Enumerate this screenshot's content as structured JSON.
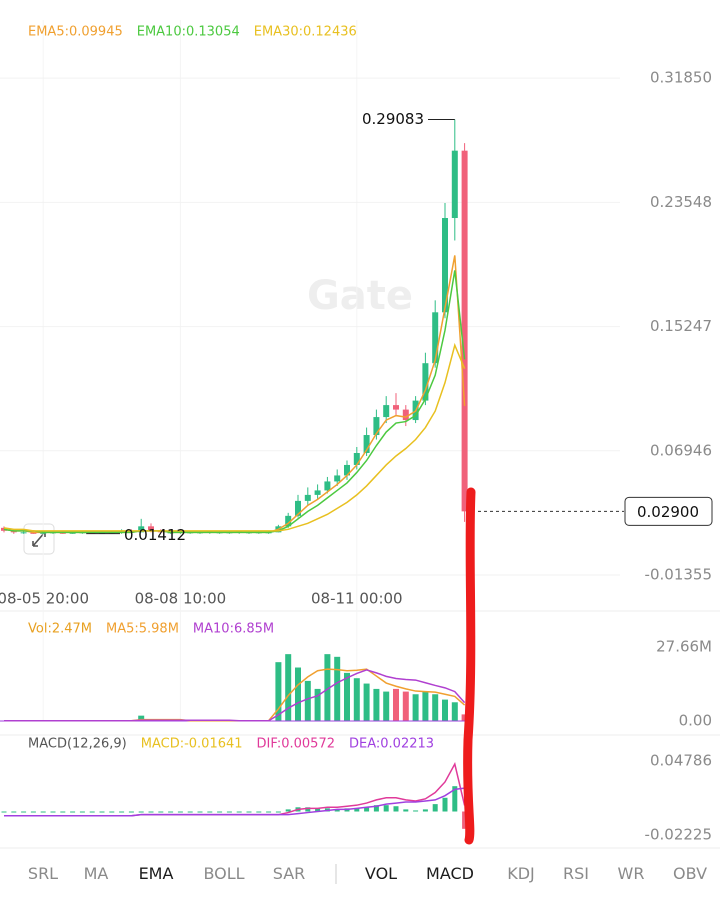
{
  "chart_data": [
    {
      "type": "candlestick",
      "watermark": "Gate",
      "categories": [
        null,
        null,
        null,
        null,
        "08-05 20:00",
        null,
        null,
        null,
        null,
        null,
        null,
        null,
        null,
        null,
        null,
        null,
        null,
        null,
        "08-08 10:00",
        null,
        null,
        null,
        null,
        null,
        null,
        null,
        null,
        null,
        null,
        null,
        null,
        null,
        null,
        null,
        null,
        null,
        "08-11 00:00",
        null,
        null,
        null,
        null,
        null,
        null,
        null,
        null,
        null,
        null,
        null
      ],
      "open": [
        0.018,
        0.016,
        0.015,
        0.015,
        0.014,
        0.015,
        0.015,
        0.014,
        0.015,
        0.015,
        0.014,
        0.015,
        0.015,
        0.016,
        0.015,
        0.019,
        0.016,
        0.015,
        0.015,
        0.015,
        0.015,
        0.015,
        0.015,
        0.015,
        0.015,
        0.015,
        0.015,
        0.015,
        0.015,
        0.019,
        0.026,
        0.036,
        0.04,
        0.043,
        0.049,
        0.053,
        0.06,
        0.068,
        0.08,
        0.092,
        0.1,
        0.097,
        0.09,
        0.103,
        0.128,
        0.162,
        0.225,
        0.27
      ],
      "high": [
        0.019,
        0.017,
        0.016,
        0.016,
        0.016,
        0.016,
        0.016,
        0.015,
        0.016,
        0.015,
        0.016,
        0.016,
        0.017,
        0.017,
        0.024,
        0.021,
        0.017,
        0.016,
        0.016,
        0.016,
        0.016,
        0.016,
        0.016,
        0.016,
        0.016,
        0.016,
        0.016,
        0.016,
        0.02,
        0.028,
        0.04,
        0.045,
        0.047,
        0.052,
        0.057,
        0.063,
        0.072,
        0.085,
        0.097,
        0.106,
        0.108,
        0.1,
        0.106,
        0.135,
        0.17,
        0.235,
        0.29083,
        0.275
      ],
      "low": [
        0.015,
        0.014,
        0.014,
        0.014,
        0.014,
        0.014,
        0.014,
        0.014,
        0.014,
        0.01412,
        0.014,
        0.014,
        0.014,
        0.015,
        0.015,
        0.015,
        0.015,
        0.014,
        0.014,
        0.014,
        0.014,
        0.014,
        0.014,
        0.014,
        0.014,
        0.014,
        0.014,
        0.014,
        0.015,
        0.018,
        0.025,
        0.033,
        0.037,
        0.041,
        0.046,
        0.05,
        0.057,
        0.066,
        0.077,
        0.088,
        0.093,
        0.086,
        0.088,
        0.1,
        0.125,
        0.158,
        0.21,
        0.022
      ],
      "close": [
        0.016,
        0.015,
        0.015,
        0.014,
        0.015,
        0.015,
        0.014,
        0.015,
        0.015,
        0.014,
        0.015,
        0.015,
        0.016,
        0.015,
        0.019,
        0.016,
        0.015,
        0.015,
        0.016,
        0.015,
        0.015,
        0.016,
        0.015,
        0.015,
        0.016,
        0.015,
        0.015,
        0.015,
        0.019,
        0.026,
        0.036,
        0.04,
        0.043,
        0.049,
        0.053,
        0.06,
        0.068,
        0.08,
        0.092,
        0.1,
        0.097,
        0.09,
        0.103,
        0.128,
        0.162,
        0.225,
        0.27,
        0.029
      ],
      "up_color": "#2ebd85",
      "down_color": "#f0617a",
      "series": [
        {
          "name": "EMA5:0.09945",
          "color": "#f0a030",
          "values": [
            0.017,
            0.016,
            0.016,
            0.015,
            0.015,
            0.015,
            0.015,
            0.015,
            0.015,
            0.015,
            0.015,
            0.015,
            0.015,
            0.015,
            0.016,
            0.016,
            0.016,
            0.015,
            0.015,
            0.015,
            0.015,
            0.015,
            0.015,
            0.015,
            0.015,
            0.015,
            0.015,
            0.015,
            0.017,
            0.021,
            0.027,
            0.033,
            0.037,
            0.042,
            0.047,
            0.053,
            0.06,
            0.07,
            0.081,
            0.09,
            0.093,
            0.092,
            0.096,
            0.11,
            0.13,
            0.165,
            0.2,
            0.09945
          ]
        },
        {
          "name": "EMA10:0.13054",
          "color": "#4cc940",
          "values": [
            0.017,
            0.016,
            0.016,
            0.016,
            0.015,
            0.015,
            0.015,
            0.015,
            0.015,
            0.015,
            0.015,
            0.015,
            0.015,
            0.015,
            0.016,
            0.016,
            0.016,
            0.015,
            0.015,
            0.015,
            0.015,
            0.015,
            0.015,
            0.015,
            0.015,
            0.015,
            0.015,
            0.015,
            0.016,
            0.019,
            0.024,
            0.029,
            0.033,
            0.038,
            0.043,
            0.048,
            0.055,
            0.063,
            0.073,
            0.082,
            0.088,
            0.089,
            0.093,
            0.104,
            0.12,
            0.15,
            0.19,
            0.13054
          ]
        },
        {
          "name": "EMA30:0.12436",
          "color": "#e8c020",
          "values": [
            0.018,
            0.017,
            0.017,
            0.016,
            0.016,
            0.016,
            0.016,
            0.016,
            0.016,
            0.016,
            0.016,
            0.016,
            0.016,
            0.016,
            0.016,
            0.016,
            0.016,
            0.016,
            0.016,
            0.016,
            0.016,
            0.016,
            0.016,
            0.016,
            0.016,
            0.016,
            0.016,
            0.016,
            0.016,
            0.017,
            0.019,
            0.021,
            0.024,
            0.027,
            0.031,
            0.035,
            0.04,
            0.046,
            0.053,
            0.06,
            0.066,
            0.071,
            0.077,
            0.085,
            0.096,
            0.115,
            0.14,
            0.12436
          ]
        }
      ],
      "ylim": [
        -0.0202,
        0.3573
      ],
      "yticks": [
        {
          "value": 0.3185,
          "label": "0.31850"
        },
        {
          "value": 0.23548,
          "label": "0.23548"
        },
        {
          "value": 0.15247,
          "label": "0.15247"
        },
        {
          "value": 0.06946,
          "label": "0.06946"
        },
        {
          "value": -0.01355,
          "label": "-0.01355"
        }
      ],
      "annotations": [
        {
          "text": "0.29083",
          "value": 0.29083
        },
        {
          "text": "0.01412",
          "value": 0.01412
        }
      ],
      "last_price": {
        "value": 0.029,
        "label": "0.02900"
      }
    },
    {
      "type": "volume",
      "series": [
        {
          "name": "Vol:2.47M",
          "values": [
            0.1,
            0.1,
            0.1,
            0.1,
            0.1,
            0.1,
            0.1,
            0.1,
            0.1,
            0.1,
            0.1,
            0.1,
            0.1,
            0.1,
            2,
            0.3,
            0.1,
            0.1,
            0.1,
            0.1,
            0.1,
            0.1,
            0.1,
            0.1,
            0.1,
            0.1,
            0.1,
            0.1,
            22,
            25,
            20,
            15,
            12,
            25,
            24,
            18,
            16,
            14,
            12,
            11,
            12,
            11,
            10,
            11,
            10,
            8,
            7,
            2.47
          ]
        },
        {
          "name": "MA5:5.98M",
          "color": "#f0a030",
          "values": [
            0.1,
            0.1,
            0.1,
            0.1,
            0.1,
            0.1,
            0.1,
            0.1,
            0.1,
            0.1,
            0.1,
            0.1,
            0.1,
            0.1,
            0.5,
            0.5,
            0.5,
            0.5,
            0.5,
            0.1,
            0.1,
            0.1,
            0.1,
            0.1,
            0.1,
            0.1,
            0.1,
            0.1,
            4.5,
            9.5,
            13.5,
            16.5,
            18.8,
            19.4,
            19.2,
            18.8,
            19,
            19.4,
            16.8,
            14.2,
            13,
            12,
            11.2,
            11,
            10.8,
            10,
            9.2,
            5.98
          ]
        },
        {
          "name": "MA10:6.85M",
          "color": "#b040d0",
          "values": [
            0.1,
            0.1,
            0.1,
            0.1,
            0.1,
            0.1,
            0.1,
            0.1,
            0.1,
            0.1,
            0.1,
            0.1,
            0.1,
            0.1,
            0.3,
            0.3,
            0.3,
            0.3,
            0.3,
            0.3,
            0.3,
            0.3,
            0.3,
            0.3,
            0.1,
            0.1,
            0.1,
            0.1,
            2.3,
            4.8,
            6.8,
            8.3,
            9.4,
            11.9,
            14.3,
            16.1,
            17.8,
            19.1,
            18,
            16.7,
            15.9,
            15.5,
            15.3,
            14.3,
            13.3,
            12.4,
            11,
            6.85
          ]
        }
      ],
      "ylim": [
        0,
        35.9
      ],
      "yticks": [
        {
          "value": 27.66,
          "label": "27.66M"
        },
        {
          "value": 0,
          "label": "0.00"
        }
      ]
    },
    {
      "type": "macd",
      "title": "MACD(12,26,9)",
      "series": [
        {
          "name": "MACD:-0.01641",
          "color": "#e8c020",
          "values": [
            0,
            0,
            0,
            0,
            0,
            0,
            0,
            0,
            0,
            0,
            0,
            0,
            0,
            0,
            0,
            0,
            0,
            0,
            0,
            0,
            0,
            0,
            0,
            0,
            0,
            0,
            0,
            0,
            0,
            0.002,
            0.004,
            0.004,
            0.003,
            0.003,
            0.002,
            0.003,
            0.003,
            0.004,
            0.006,
            0.006,
            0.005,
            0.002,
            0.001,
            0.002,
            0.007,
            0.013,
            0.024,
            -0.01641
          ]
        },
        {
          "name": "DIF:0.00572",
          "color": "#e03a9a",
          "values": [
            -0.004,
            -0.004,
            -0.004,
            -0.004,
            -0.004,
            -0.004,
            -0.004,
            -0.004,
            -0.004,
            -0.004,
            -0.004,
            -0.004,
            -0.004,
            -0.004,
            -0.003,
            -0.003,
            -0.003,
            -0.003,
            -0.003,
            -0.003,
            -0.003,
            -0.003,
            -0.003,
            -0.003,
            -0.003,
            -0.003,
            -0.003,
            -0.003,
            -0.003,
            -0.001,
            0.002,
            0.003,
            0.003,
            0.004,
            0.004,
            0.005,
            0.006,
            0.008,
            0.011,
            0.013,
            0.013,
            0.011,
            0.01,
            0.012,
            0.018,
            0.028,
            0.045,
            0.00572
          ]
        },
        {
          "name": "DEA:0.02213",
          "color": "#a040e0",
          "values": [
            -0.004,
            -0.004,
            -0.004,
            -0.004,
            -0.004,
            -0.004,
            -0.004,
            -0.004,
            -0.004,
            -0.004,
            -0.004,
            -0.004,
            -0.004,
            -0.004,
            -0.003,
            -0.003,
            -0.003,
            -0.003,
            -0.003,
            -0.003,
            -0.003,
            -0.003,
            -0.003,
            -0.003,
            -0.003,
            -0.003,
            -0.003,
            -0.003,
            -0.003,
            -0.003,
            -0.002,
            -0.001,
            0,
            0.001,
            0.002,
            0.002,
            0.003,
            0.004,
            0.005,
            0.007,
            0.008,
            0.009,
            0.009,
            0.01,
            0.011,
            0.015,
            0.021,
            0.02213
          ]
        }
      ],
      "ylim": [
        -0.0289,
        0.0564
      ],
      "yticks": [
        {
          "value": 0.04786,
          "label": "0.04786"
        },
        {
          "value": -0.02225,
          "label": "-0.02225"
        }
      ]
    }
  ],
  "tabs": [
    {
      "label": "SRL",
      "active": false
    },
    {
      "label": "MA",
      "active": false
    },
    {
      "label": "EMA",
      "active": true
    },
    {
      "label": "BOLL",
      "active": false
    },
    {
      "label": "SAR",
      "active": false
    },
    {
      "label": "VOL",
      "active": true
    },
    {
      "label": "MACD",
      "active": true
    },
    {
      "label": "KDJ",
      "active": false
    },
    {
      "label": "RSI",
      "active": false
    },
    {
      "label": "WR",
      "active": false
    },
    {
      "label": "OBV",
      "active": false
    }
  ]
}
